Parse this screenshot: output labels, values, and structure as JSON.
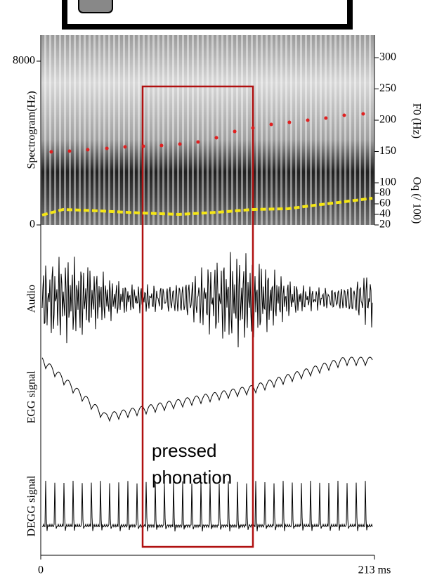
{
  "chart_data": {
    "type": "line",
    "xlim": [
      0,
      213
    ],
    "xticks": [
      0,
      {
        "value": 213,
        "label": "213 ms"
      }
    ],
    "ylim": [
      0,
      9270
    ],
    "yticks": [
      0,
      8000
    ],
    "y_label": "Spectrogram(Hz)",
    "y2lim": [
      32.6,
      336
    ],
    "y2ticks": [
      100,
      150,
      200,
      250,
      300
    ],
    "y2_label": "F0 (Hz)",
    "y3lim": [
      20,
      380
    ],
    "y3ticks": [
      20,
      40,
      60,
      80
    ],
    "y3_label": "Oq (/ 100)",
    "series": [
      {
        "color": "#e02020",
        "axis": "y2",
        "style": "points",
        "x": [
          6.7,
          18.4,
          30.0,
          42.2,
          53.8,
          65.5,
          77.1,
          88.8,
          100.4,
          112.1,
          123.8,
          135.4,
          147.1,
          158.7,
          170.4,
          182.0,
          193.7,
          205.8
        ],
        "values": [
          149.4,
          150.6,
          152.8,
          155,
          157.3,
          158.4,
          159.6,
          161.8,
          165.2,
          171.9,
          182,
          187.6,
          193.3,
          196.6,
          200,
          203.4,
          207.9,
          210.1
        ]
      },
      {
        "color": "#f5e614",
        "axis": "y3",
        "style": "dashed",
        "x": [
          0.9,
          14.3,
          36.8,
          63.7,
          88.3,
          113,
          135.4,
          157.8,
          171.3,
          193.7,
          211.7
        ],
        "values": [
          38.7,
          49.3,
          46.7,
          42.7,
          40,
          44,
          49.3,
          50.7,
          56,
          64,
          70.7
        ]
      }
    ],
    "panels": [
      "Audio",
      "EGG signal",
      "DEGG signal"
    ],
    "annotation": "pressed phonation"
  }
}
